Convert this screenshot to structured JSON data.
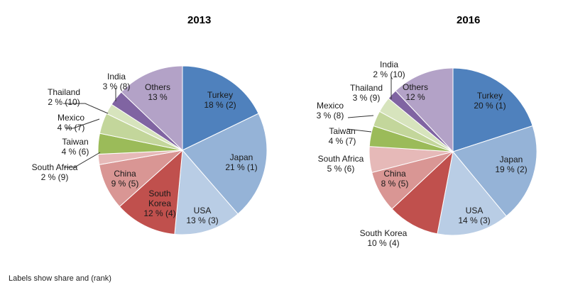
{
  "footnote": "Labels show share and (rank)",
  "chart_data": [
    {
      "type": "pie",
      "title": "2013",
      "start_angle_deg": 0,
      "direction": "clockwise",
      "slices": [
        {
          "name": "Turkey",
          "value": 18,
          "rank": 2,
          "label": "18 % (2)",
          "color": "#4f81bd"
        },
        {
          "name": "Japan",
          "value": 21,
          "rank": 1,
          "label": "21 % (1)",
          "color": "#95b3d7"
        },
        {
          "name": "USA",
          "value": 13,
          "rank": 3,
          "label": "13 % (3)",
          "color": "#b9cde5"
        },
        {
          "name": "South Korea",
          "value": 12,
          "rank": 4,
          "label": "12 % (4)",
          "color": "#c0504d"
        },
        {
          "name": "China",
          "value": 9,
          "rank": 5,
          "label": "9 % (5)",
          "color": "#d99694"
        },
        {
          "name": "South Africa",
          "value": 2,
          "rank": 9,
          "label": "2 % (9)",
          "color": "#e6b9b8"
        },
        {
          "name": "Taiwan",
          "value": 4,
          "rank": 6,
          "label": "4 % (6)",
          "color": "#9bbb59"
        },
        {
          "name": "Mexico",
          "value": 4,
          "rank": 7,
          "label": "4 % (7)",
          "color": "#c3d69b"
        },
        {
          "name": "Thailand",
          "value": 2,
          "rank": 10,
          "label": "2 % (10)",
          "color": "#d7e4bd"
        },
        {
          "name": "India",
          "value": 3,
          "rank": 8,
          "label": "3 % (8)",
          "color": "#8064a2"
        },
        {
          "name": "Others",
          "value": 13,
          "rank": null,
          "label": "13 %",
          "color": "#b3a2c7"
        }
      ]
    },
    {
      "type": "pie",
      "title": "2016",
      "start_angle_deg": 0,
      "direction": "clockwise",
      "slices": [
        {
          "name": "Turkey",
          "value": 20,
          "rank": 1,
          "label": "20 % (1)",
          "color": "#4f81bd"
        },
        {
          "name": "Japan",
          "value": 19,
          "rank": 2,
          "label": "19 % (2)",
          "color": "#95b3d7"
        },
        {
          "name": "USA",
          "value": 14,
          "rank": 3,
          "label": "14 % (3)",
          "color": "#b9cde5"
        },
        {
          "name": "South Korea",
          "value": 10,
          "rank": 4,
          "label": "10 % (4)",
          "color": "#c0504d"
        },
        {
          "name": "China",
          "value": 8,
          "rank": 5,
          "label": "8 % (5)",
          "color": "#d99694"
        },
        {
          "name": "South Africa",
          "value": 5,
          "rank": 6,
          "label": "5 % (6)",
          "color": "#e6b9b8"
        },
        {
          "name": "Taiwan",
          "value": 4,
          "rank": 7,
          "label": "4 % (7)",
          "color": "#9bbb59"
        },
        {
          "name": "Mexico",
          "value": 3,
          "rank": 8,
          "label": "3 % (8)",
          "color": "#c3d69b"
        },
        {
          "name": "Thailand",
          "value": 3,
          "rank": 9,
          "label": "3 % (9)",
          "color": "#d7e4bd"
        },
        {
          "name": "India",
          "value": 2,
          "rank": 10,
          "label": "2 % (10)",
          "color": "#8064a2"
        },
        {
          "name": "Others",
          "value": 12,
          "rank": null,
          "label": "12 %",
          "color": "#b3a2c7"
        }
      ]
    }
  ]
}
